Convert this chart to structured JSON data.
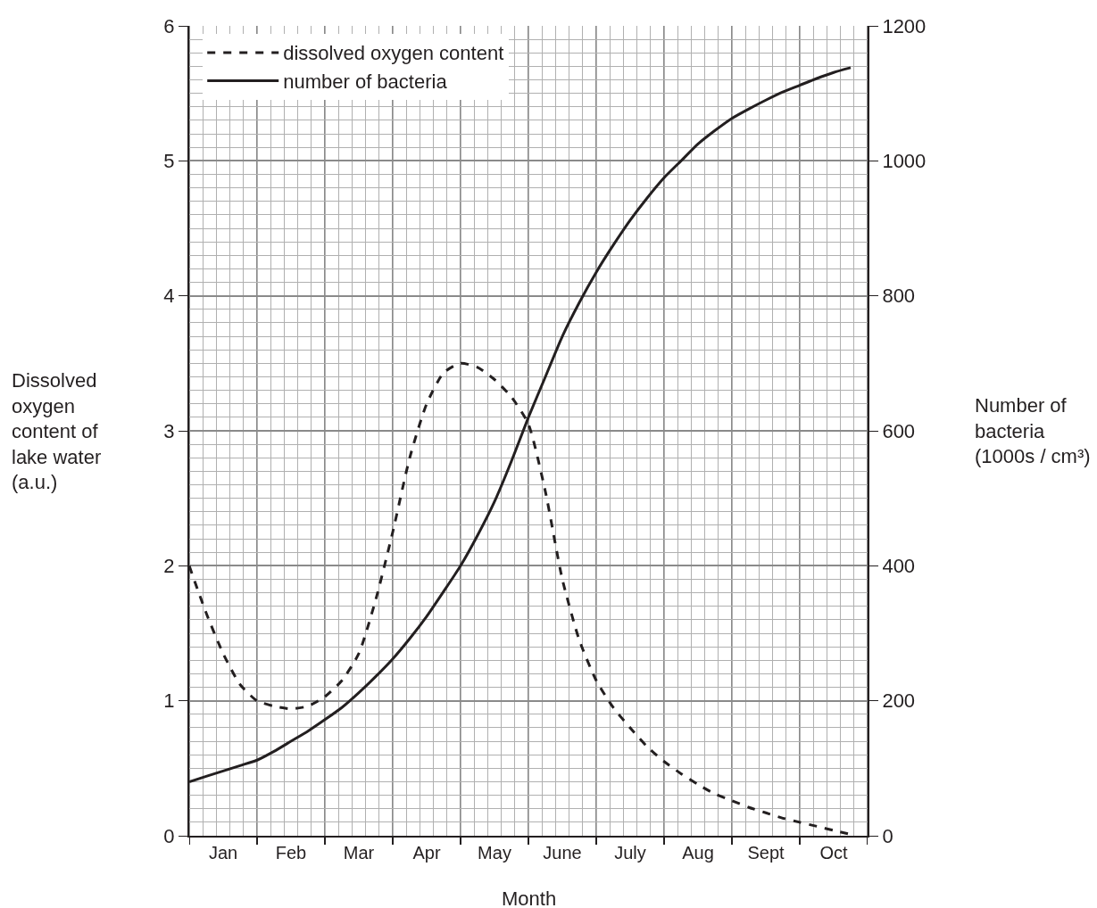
{
  "chart_data": {
    "type": "line",
    "xlabel": "Month",
    "ylabel": "Dissolved\noxygen\ncontent of\nlake water\n(a.u.)",
    "y2label": "Number of\nbacteria\n(1000s / cm³)",
    "categories": [
      null,
      null,
      "Jan",
      null,
      null,
      null,
      "Feb",
      null,
      null,
      null,
      "Mar",
      null,
      null,
      null,
      "Apr",
      null,
      null,
      null,
      "May",
      null,
      null,
      null,
      "June",
      null,
      null,
      null,
      "July",
      null,
      null,
      null,
      "Aug",
      null,
      null,
      null,
      "Sept",
      null,
      null,
      null,
      "Oct",
      null,
      null
    ],
    "ylim": [
      0,
      6
    ],
    "yticks": [
      0,
      1,
      2,
      3,
      4,
      5,
      6
    ],
    "y2lim": [
      0,
      1200
    ],
    "y2ticks": [
      0,
      200,
      400,
      600,
      800,
      1000,
      1200
    ],
    "grid": true,
    "legend": "top left",
    "marker": "none",
    "series": [
      {
        "name": "dissolved oxygen content",
        "color": "#231f20",
        "line_style": "dashed",
        "values": [
          2.0,
          1.65,
          1.35,
          1.12,
          1.0,
          0.96,
          0.94,
          0.96,
          1.03,
          1.15,
          1.35,
          1.75,
          2.25,
          2.8,
          3.2,
          3.43,
          3.5,
          3.47,
          3.38,
          3.25,
          3.05,
          2.55,
          1.9,
          1.45,
          1.15,
          0.95,
          0.8,
          0.66,
          0.55,
          0.46,
          0.38,
          0.31,
          0.26,
          0.21,
          0.17,
          0.13,
          0.1,
          0.07,
          0.04,
          0.01,
          null
        ]
      },
      {
        "name": "number of bacteria",
        "color": "#231f20",
        "line_style": "solid",
        "axis": "y2",
        "values": [
          80,
          88,
          96,
          104,
          112,
          125,
          140,
          155,
          172,
          190,
          212,
          236,
          262,
          292,
          325,
          362,
          400,
          445,
          495,
          555,
          620,
          680,
          740,
          790,
          835,
          875,
          912,
          945,
          975,
          1000,
          1025,
          1045,
          1063,
          1077,
          1090,
          1102,
          1112,
          1122,
          1131,
          1138,
          null
        ]
      }
    ]
  }
}
